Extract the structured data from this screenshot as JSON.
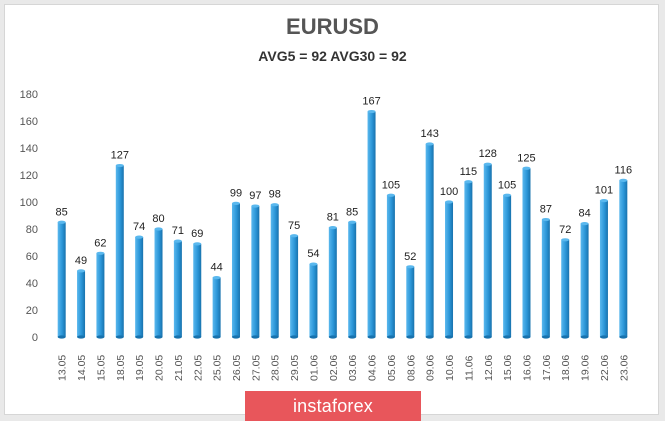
{
  "header": {
    "title": "EURUSD",
    "subtitle": "AVG5 = 92 AVG30 = 92"
  },
  "watermark": "instaforex",
  "colors": {
    "bar_light": "#5ab8ee",
    "bar_mid": "#2b96d8",
    "bar_dark": "#1872ad",
    "axis_text": "#555555",
    "grid": "#e2e2e2"
  },
  "chart_data": {
    "type": "bar",
    "title": "EURUSD",
    "subtitle": "AVG5 = 92 AVG30 = 92",
    "categories": [
      "13.05",
      "14.05",
      "15.05",
      "18.05",
      "19.05",
      "20.05",
      "21.05",
      "22.05",
      "25.05",
      "26.05",
      "27.05",
      "28.05",
      "29.05",
      "01.06",
      "02.06",
      "03.06",
      "04.06",
      "05.06",
      "08.06",
      "09.06",
      "10.06",
      "11.06",
      "12.06",
      "15.06",
      "16.06",
      "17.06",
      "18.06",
      "19.06",
      "22.06",
      "23.06"
    ],
    "values": [
      85,
      49,
      62,
      127,
      74,
      80,
      71,
      69,
      44,
      99,
      97,
      98,
      75,
      54,
      81,
      85,
      167,
      105,
      52,
      143,
      100,
      115,
      128,
      105,
      125,
      87,
      72,
      84,
      101,
      116
    ],
    "yticks": [
      0,
      20,
      40,
      60,
      80,
      100,
      120,
      140,
      160,
      180
    ],
    "ylim": [
      0,
      180
    ],
    "xlabel": "",
    "ylabel": "",
    "grid": false,
    "data_labels": true
  }
}
